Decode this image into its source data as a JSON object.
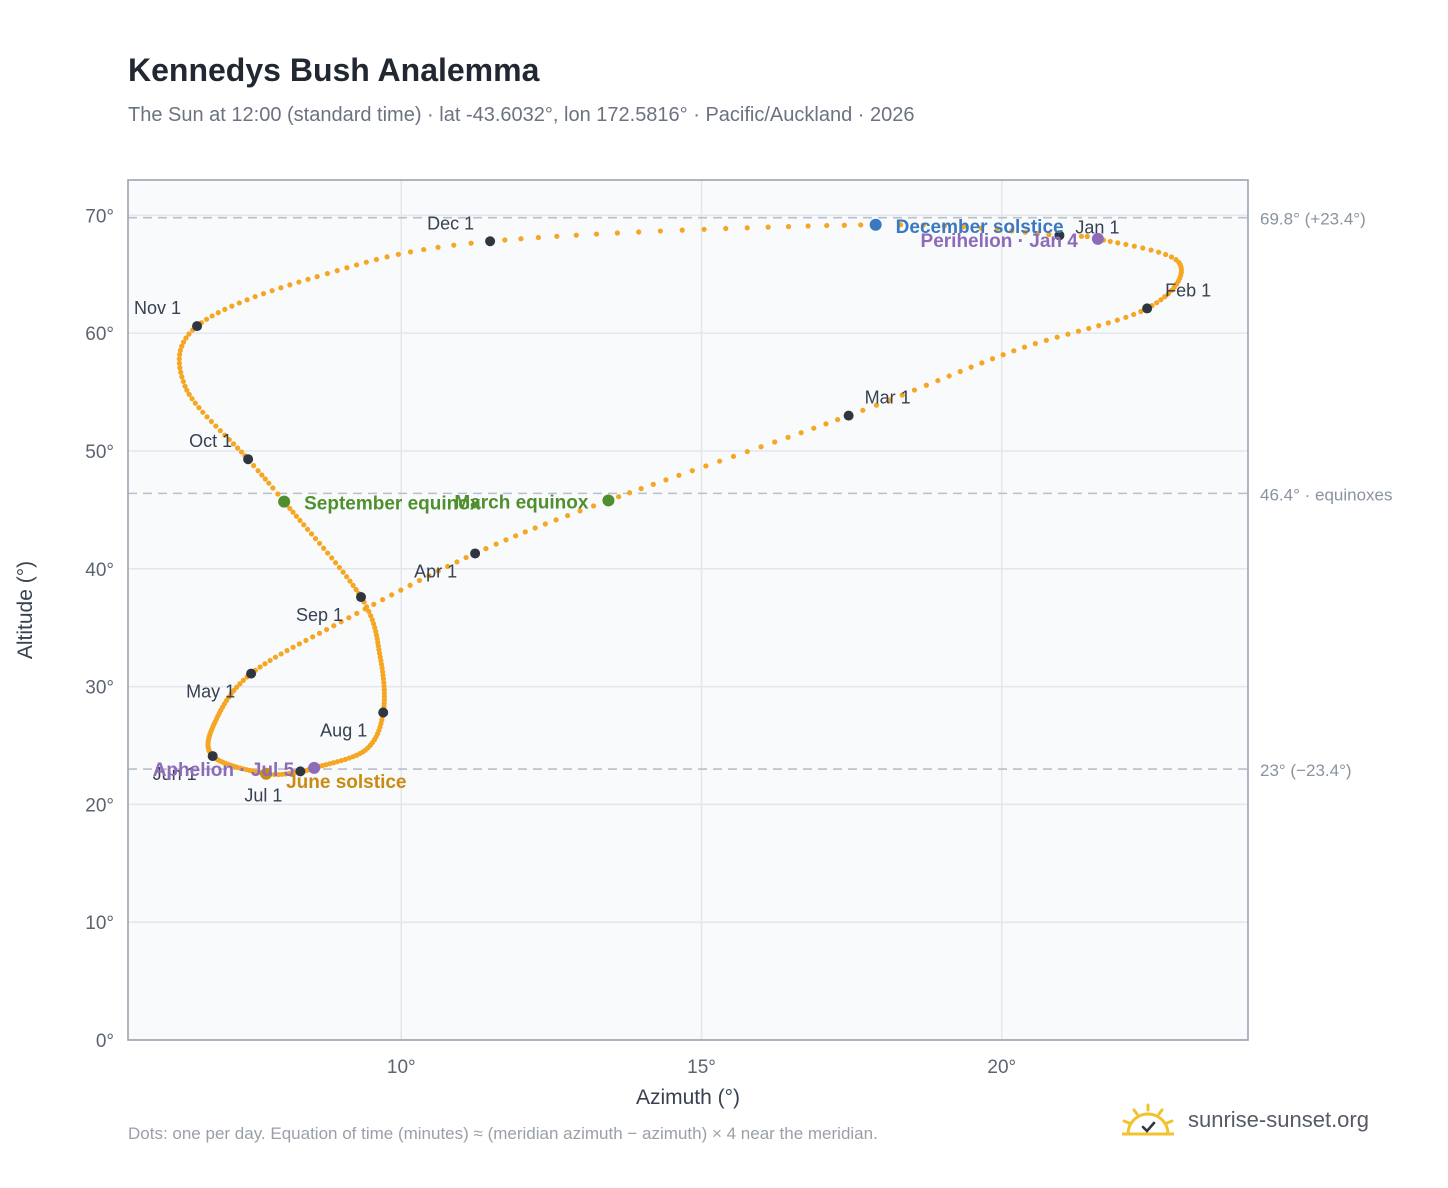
{
  "header": {
    "title": "Kennedys Bush Analemma",
    "subtitle": "The Sun at 12:00 (standard time) · lat -43.6032°, lon 172.5816° · Pacific/Auckland · 2026"
  },
  "footer": {
    "note": "Dots: one per day. Equation of time (minutes) ≈ (meridian azimuth − azimuth) × 4 near the meridian.",
    "brand": "sunrise-sunset.org"
  },
  "colors": {
    "curve": "#f5a623",
    "month_dot": "#2f3640",
    "equinox": "#4f8f2e",
    "december_solstice": "#3a78c2",
    "june_solstice": "#c98b12",
    "apsis": "#8e6bb8",
    "plot_bg": "#f8fafc",
    "grid": "#e3e7ec",
    "ref_line": "#b7c0cb"
  },
  "chart_data": {
    "type": "scatter",
    "xlabel": "Azimuth (°)",
    "ylabel": "Altitude (°)",
    "xlim": [
      5.45,
      24.1
    ],
    "ylim": [
      0,
      73
    ],
    "x_ticks": [
      10,
      15,
      20
    ],
    "y_ticks": [
      0,
      10,
      20,
      30,
      40,
      50,
      60,
      70
    ],
    "x_tick_labels": [
      "10°",
      "15°",
      "20°"
    ],
    "y_tick_labels": [
      "0°",
      "10°",
      "20°",
      "30°",
      "40°",
      "50°",
      "60°",
      "70°"
    ],
    "grid": true,
    "series_daily": {
      "points_per_year": 365,
      "anchors": [
        {
          "day": 0,
          "az": 20.96,
          "alt": 68.3
        },
        {
          "day": 3,
          "az": 21.6,
          "alt": 68.0
        },
        {
          "day": 15,
          "az": 22.95,
          "alt": 66.0
        },
        {
          "day": 31,
          "az": 22.42,
          "alt": 62.1
        },
        {
          "day": 45,
          "az": 20.2,
          "alt": 58.5
        },
        {
          "day": 59,
          "az": 17.45,
          "alt": 53.0
        },
        {
          "day": 78,
          "az": 13.45,
          "alt": 45.8
        },
        {
          "day": 90,
          "az": 11.23,
          "alt": 41.3
        },
        {
          "day": 105,
          "az": 9.0,
          "alt": 35.5
        },
        {
          "day": 120,
          "az": 7.5,
          "alt": 31.1
        },
        {
          "day": 135,
          "az": 6.9,
          "alt": 27.0
        },
        {
          "day": 151,
          "az": 6.86,
          "alt": 24.1
        },
        {
          "day": 171,
          "az": 7.75,
          "alt": 22.6
        },
        {
          "day": 181,
          "az": 8.32,
          "alt": 22.8
        },
        {
          "day": 185,
          "az": 8.55,
          "alt": 23.1
        },
        {
          "day": 200,
          "az": 9.4,
          "alt": 24.6
        },
        {
          "day": 212,
          "az": 9.7,
          "alt": 27.8
        },
        {
          "day": 228,
          "az": 9.65,
          "alt": 32.5
        },
        {
          "day": 243,
          "az": 9.33,
          "alt": 37.6
        },
        {
          "day": 265,
          "az": 8.05,
          "alt": 45.7
        },
        {
          "day": 273,
          "az": 7.45,
          "alt": 49.3
        },
        {
          "day": 290,
          "az": 6.4,
          "alt": 55.5
        },
        {
          "day": 304,
          "az": 6.6,
          "alt": 60.6
        },
        {
          "day": 320,
          "az": 8.6,
          "alt": 64.8
        },
        {
          "day": 334,
          "az": 11.48,
          "alt": 67.8
        },
        {
          "day": 354,
          "az": 17.9,
          "alt": 69.2
        },
        {
          "day": 365,
          "az": 20.96,
          "alt": 68.3
        }
      ]
    },
    "month_markers": [
      {
        "label": "Jan 1",
        "az": 20.96,
        "alt": 68.3
      },
      {
        "label": "Feb 1",
        "az": 22.42,
        "alt": 62.1
      },
      {
        "label": "Mar 1",
        "az": 17.45,
        "alt": 53.0
      },
      {
        "label": "Apr 1",
        "az": 11.23,
        "alt": 41.3
      },
      {
        "label": "May 1",
        "az": 7.5,
        "alt": 31.1
      },
      {
        "label": "Jun 1",
        "az": 6.86,
        "alt": 24.1
      },
      {
        "label": "Jul 1",
        "az": 8.32,
        "alt": 22.8
      },
      {
        "label": "Aug 1",
        "az": 9.7,
        "alt": 27.8
      },
      {
        "label": "Sep 1",
        "az": 9.33,
        "alt": 37.6
      },
      {
        "label": "Oct 1",
        "az": 7.45,
        "alt": 49.3
      },
      {
        "label": "Nov 1",
        "az": 6.6,
        "alt": 60.6
      },
      {
        "label": "Dec 1",
        "az": 11.48,
        "alt": 67.8
      }
    ],
    "events": [
      {
        "label": "December solstice",
        "az": 17.9,
        "alt": 69.2,
        "color_key": "december_solstice"
      },
      {
        "label": "Perihelion · Jan 4",
        "az": 21.6,
        "alt": 68.0,
        "color_key": "apsis"
      },
      {
        "label": "March equinox",
        "az": 13.45,
        "alt": 45.8,
        "color_key": "equinox"
      },
      {
        "label": "September equinox",
        "az": 8.05,
        "alt": 45.7,
        "color_key": "equinox"
      },
      {
        "label": "June solstice",
        "az": 7.75,
        "alt": 22.6,
        "color_key": "june_solstice"
      },
      {
        "label": "Aphelion · Jul 5",
        "az": 8.55,
        "alt": 23.1,
        "color_key": "apsis"
      }
    ],
    "reference_lines": [
      {
        "alt": 69.8,
        "label": "69.8° (+23.4°)"
      },
      {
        "alt": 46.4,
        "label": "46.4° · equinoxes"
      },
      {
        "alt": 23.0,
        "label": "23° (−23.4°)"
      }
    ]
  }
}
